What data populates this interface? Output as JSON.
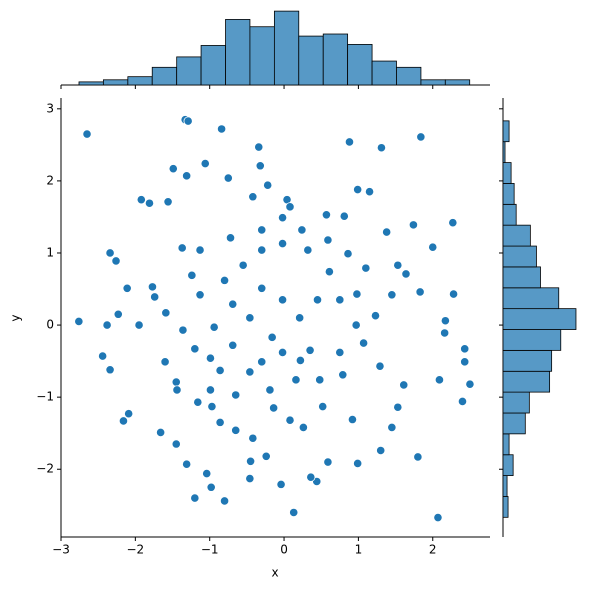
{
  "chart_data": [
    {
      "type": "scatter",
      "xlabel": "x",
      "ylabel": "y",
      "color": "#1f77b4",
      "xlim": [
        -3.0,
        2.77
      ],
      "ylim": [
        -2.94,
        3.15
      ],
      "xticks": [
        {
          "value": -3,
          "label": "−3"
        },
        {
          "value": -2,
          "label": "−2"
        },
        {
          "value": -1,
          "label": "−1"
        },
        0,
        1,
        2
      ],
      "yticks": [
        {
          "value": -2,
          "label": "−2"
        },
        {
          "value": -1,
          "label": "−1"
        },
        0,
        1,
        2,
        3
      ],
      "x": [
        -2.65,
        -2.76,
        -1.33,
        -1.29,
        -0.84,
        0.88,
        1.84,
        1.31,
        2.07,
        0.13,
        -1.2,
        -0.8,
        -0.98,
        -2.44,
        -2.34,
        -2.16,
        -2.09,
        2.4,
        2.5,
        2.43,
        2.43,
        2.17,
        2.16,
        2.28,
        2.27,
        2.0,
        1.74,
        0.99,
        1.15,
        2.09,
        1.8,
        1.3,
        0.99,
        0.59,
        0.44,
        0.36,
        -0.04,
        -0.46,
        -1.31,
        -1.45,
        -1.66,
        -1.04,
        -0.45,
        -0.24,
        -2.34,
        -2.26,
        -1.92,
        -1.81,
        -1.56,
        -1.49,
        -1.31,
        -1.06,
        -0.75,
        -0.34,
        -0.32,
        -0.22,
        -0.42,
        0.04,
        0.08,
        -0.02,
        0.57,
        0.81,
        1.38,
        1.53,
        1.64,
        1.83,
        1.45,
        -2.38,
        -2.23,
        -2.11,
        -1.77,
        -1.74,
        -1.95,
        -1.6,
        -1.45,
        -1.44,
        -1.16,
        -0.97,
        -0.86,
        -0.65,
        -0.42,
        0.08,
        0.26,
        0.52,
        0.92,
        1.45,
        1.53,
        1.61,
        1.29,
        1.07,
        0.75,
        0.22,
        -0.16,
        -0.46,
        -0.69,
        -0.94,
        -1.2,
        -1.36,
        -1.13,
        -0.8,
        -0.55,
        -0.3,
        -0.02,
        0.32,
        0.61,
        0.45,
        0.21,
        -0.02,
        -0.3,
        0.75,
        0.97,
        1.23,
        0.98,
        1.1,
        0.86,
        0.59,
        0.24,
        -0.3,
        -0.72,
        -1.13,
        -1.37,
        -1.24,
        -1.59,
        -0.69,
        -0.46,
        -0.19,
        0.16,
        0.48,
        0.79,
        0.35,
        -0.02,
        -0.3,
        -0.86,
        -0.99,
        -0.65,
        -0.14,
        -0.99
      ],
      "y": [
        2.65,
        0.05,
        2.85,
        2.83,
        2.72,
        2.54,
        2.61,
        2.46,
        -2.67,
        -2.6,
        -2.4,
        -2.44,
        -2.25,
        -0.43,
        -0.62,
        -1.33,
        -1.23,
        -1.06,
        -0.82,
        -0.33,
        -0.51,
        0.06,
        -0.11,
        0.43,
        1.42,
        1.08,
        1.39,
        1.88,
        1.85,
        -0.76,
        -1.83,
        -1.74,
        -1.92,
        -1.9,
        -2.17,
        -2.11,
        -2.21,
        -2.13,
        -1.93,
        -1.65,
        -1.49,
        -2.06,
        -1.89,
        -1.82,
        1.0,
        0.89,
        1.74,
        1.69,
        1.71,
        2.17,
        2.07,
        2.24,
        2.04,
        2.47,
        2.21,
        1.94,
        1.78,
        1.74,
        1.64,
        1.49,
        1.53,
        1.51,
        1.29,
        0.83,
        0.71,
        0.46,
        0.42,
        0.0,
        0.15,
        0.51,
        0.53,
        0.39,
        0.0,
        -0.51,
        -0.79,
        -0.9,
        -1.07,
        -1.13,
        -1.35,
        -1.46,
        -1.57,
        -1.32,
        -1.42,
        -1.13,
        -1.31,
        -1.42,
        -1.14,
        -0.83,
        -0.57,
        -0.25,
        -0.38,
        -0.49,
        -0.17,
        0.1,
        0.29,
        -0.03,
        -0.33,
        -0.07,
        0.42,
        0.62,
        0.83,
        1.04,
        1.13,
        1.04,
        0.74,
        0.35,
        0.1,
        0.35,
        0.51,
        0.35,
        0.0,
        0.13,
        0.43,
        0.79,
        0.99,
        1.18,
        1.32,
        1.32,
        1.21,
        1.04,
        1.07,
        0.69,
        0.17,
        -0.28,
        -0.65,
        -0.9,
        -0.76,
        -0.76,
        -0.69,
        -0.35,
        -0.38,
        -0.51,
        -0.63,
        -0.9,
        -0.97,
        -1.15,
        -0.46
      ]
    },
    {
      "type": "histogram",
      "orientation": "vertical",
      "color": "#5799c6",
      "ylim": [
        0,
        74
      ],
      "bins": [
        -2.758,
        -2.43,
        -2.101,
        -1.773,
        -1.444,
        -1.116,
        -0.787,
        -0.459,
        -0.13,
        0.198,
        0.527,
        0.855,
        1.184,
        1.512,
        1.841,
        2.169,
        2.497
      ],
      "values": [
        3,
        5,
        8,
        17,
        27,
        38,
        63,
        56,
        71,
        47,
        49,
        39,
        23,
        17,
        5,
        5
      ]
    },
    {
      "type": "histogram",
      "orientation": "horizontal",
      "color": "#5799c6",
      "xlim": [
        0,
        74
      ],
      "bins": [
        -2.667,
        -2.378,
        -2.088,
        -1.799,
        -1.509,
        -1.22,
        -0.93,
        -0.641,
        -0.351,
        -0.062,
        0.228,
        0.517,
        0.807,
        1.096,
        1.386,
        1.675,
        1.965,
        2.254,
        2.544,
        2.833
      ],
      "values": [
        5,
        4,
        10,
        6,
        22,
        26,
        46,
        48,
        57,
        72,
        55,
        37,
        33,
        27,
        13,
        11,
        8,
        2,
        6
      ]
    }
  ]
}
